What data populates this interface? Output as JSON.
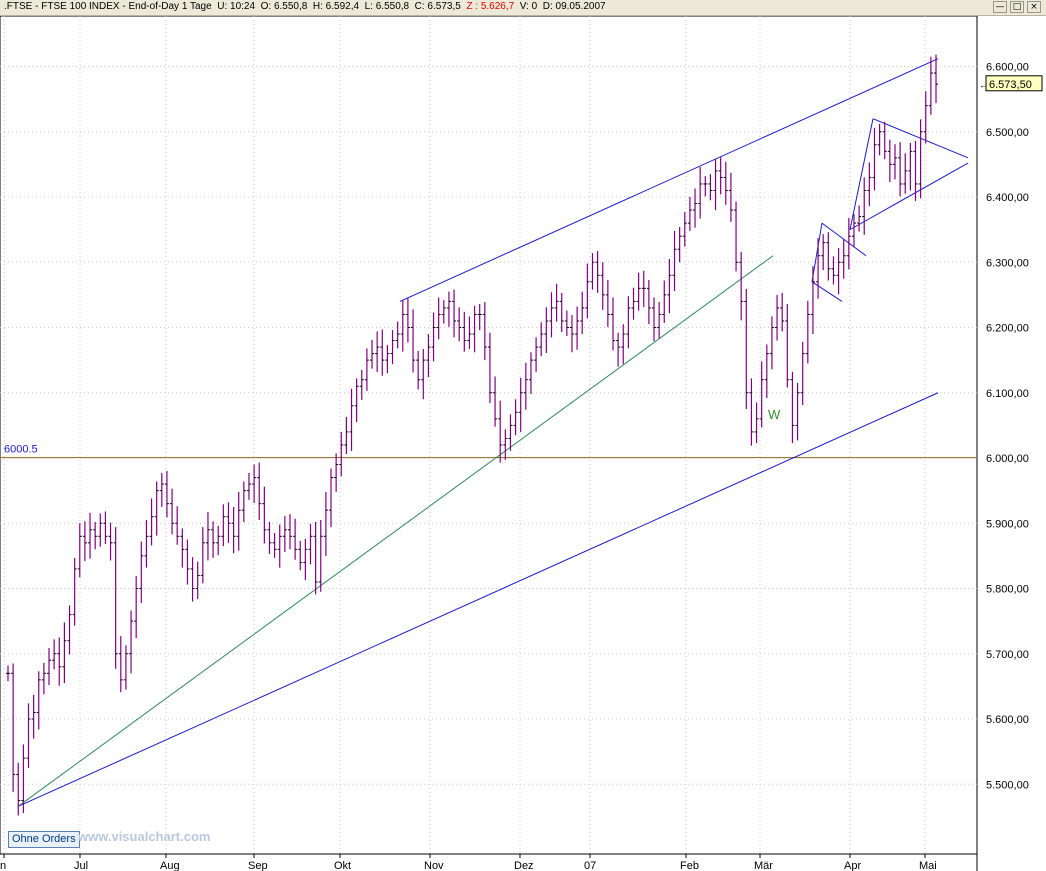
{
  "titlebar": {
    "symbol": ".FTSE",
    "name": "FTSE 100 INDEX",
    "period": "End-of-Day 1 Tage",
    "u": "U: 10:24",
    "o": "O: 6.550,8",
    "h": "H: 6.592,4",
    "l": "L: 6.550,8",
    "c": "C: 6.573,5",
    "z": "Z : 5.626,7",
    "v": "V: 0",
    "d": "D: 09.05.2007",
    "min_icon": "minimize-icon",
    "max_icon": "maximize-icon",
    "close_icon": "close-icon"
  },
  "footer": {
    "orders_button": "Ohne Orders",
    "watermark": "www.visualchart.com"
  },
  "chart_data": {
    "type": "bar",
    "title": ".FTSE - FTSE 100 INDEX - End-of-Day 1 Tage",
    "xlabel": "",
    "ylabel": "",
    "ylim": [
      5400,
      6660
    ],
    "grid": true,
    "x_tick_labels": [
      "n",
      "Jul",
      "Aug",
      "Sep",
      "Okt",
      "Nov",
      "Dez",
      "07",
      "Feb",
      "Mär",
      "Apr",
      "Mai"
    ],
    "y_tick_labels": [
      "6.600,00",
      "6.500,00",
      "6.400,00",
      "6.300,00",
      "6.200,00",
      "6.100,00",
      "6.000,00",
      "5.900,00",
      "5.800,00",
      "5.700,00",
      "5.600,00",
      "5.500,00"
    ],
    "y_tick_values": [
      6600,
      6500,
      6400,
      6300,
      6200,
      6100,
      6000,
      5900,
      5800,
      5700,
      5600,
      5500
    ],
    "current_price": 6573.5,
    "current_price_label": "6.573,50",
    "horizontal_line": {
      "value": 6000.5,
      "label": "6000.5",
      "color": "#8b6914"
    },
    "annotation": {
      "text": "W",
      "color": "#2e8b2e"
    },
    "bar_color": "#800080",
    "trendlines": [
      {
        "name": "upper-channel",
        "color": "#1a1acd",
        "from": [
          "Okt",
          6240
        ],
        "to": [
          "Mai",
          6612
        ]
      },
      {
        "name": "lower-channel",
        "color": "#1a1acd",
        "from": [
          "Jun",
          5466
        ],
        "to": [
          "Mai",
          6100
        ]
      },
      {
        "name": "support-green",
        "color": "#2e8b57",
        "from": [
          "Jun",
          5466
        ],
        "to": [
          "Feb",
          6310
        ]
      },
      {
        "name": "triangle-upper",
        "color": "#1a1acd",
        "from": [
          "Apr",
          6520
        ],
        "to": [
          "Mai",
          6460
        ]
      },
      {
        "name": "triangle-lower",
        "color": "#1a1acd",
        "from": [
          "Apr",
          6350
        ],
        "to": [
          "Mai",
          6452
        ]
      },
      {
        "name": "flag-upper",
        "color": "#1a1acd",
        "from": [
          "Mär",
          6360
        ],
        "to": [
          "Apr",
          6310
        ]
      },
      {
        "name": "flag-lower",
        "color": "#1a1acd",
        "from": [
          "Mär",
          6270
        ],
        "to": [
          "Mär",
          6240
        ]
      }
    ],
    "series": [
      {
        "name": "FTSE 100",
        "values": [
          5670,
          5515,
          5475,
          5540,
          5600,
          5610,
          5660,
          5670,
          5690,
          5700,
          5680,
          5720,
          5760,
          5830,
          5880,
          5870,
          5890,
          5880,
          5900,
          5880,
          5870,
          5700,
          5660,
          5700,
          5750,
          5800,
          5850,
          5880,
          5910,
          5950,
          5960,
          5930,
          5900,
          5880,
          5860,
          5830,
          5800,
          5820,
          5870,
          5890,
          5870,
          5880,
          5910,
          5900,
          5880,
          5920,
          5950,
          5960,
          5970,
          5930,
          5890,
          5870,
          5860,
          5880,
          5890,
          5880,
          5860,
          5840,
          5860,
          5880,
          5810,
          5880,
          5920,
          5970,
          5990,
          6020,
          6040,
          6080,
          6110,
          6120,
          6150,
          6160,
          6170,
          6150,
          6160,
          6180,
          6190,
          6220,
          6200,
          6150,
          6120,
          6150,
          6170,
          6200,
          6220,
          6230,
          6240,
          6210,
          6200,
          6180,
          6190,
          6220,
          6220,
          6170,
          6100,
          6060,
          6020,
          6030,
          6050,
          6070,
          6100,
          6120,
          6150,
          6170,
          6190,
          6210,
          6230,
          6240,
          6210,
          6200,
          6190,
          6210,
          6230,
          6270,
          6300,
          6280,
          6250,
          6220,
          6180,
          6170,
          6190,
          6230,
          6240,
          6260,
          6260,
          6230,
          6200,
          6220,
          6250,
          6280,
          6320,
          6340,
          6360,
          6380,
          6390,
          6420,
          6420,
          6410,
          6440,
          6430,
          6410,
          6380,
          6300,
          6240,
          6100,
          6040,
          6060,
          6120,
          6160,
          6200,
          6230,
          6210,
          6120,
          6050,
          6100,
          6160,
          6220,
          6270,
          6310,
          6330,
          6290,
          6280,
          6300,
          6310,
          6340,
          6360,
          6370,
          6410,
          6430,
          6480,
          6500,
          6470,
          6450,
          6460,
          6420,
          6440,
          6470,
          6420,
          6500,
          6540,
          6590,
          6573
        ]
      }
    ]
  }
}
